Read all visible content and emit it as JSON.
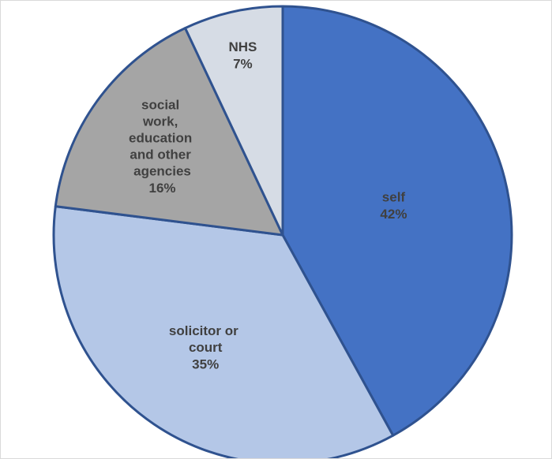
{
  "chart_data": {
    "type": "pie",
    "categories": [
      "self",
      "solicitor or court",
      "social work, education and other agencies",
      "NHS"
    ],
    "values": [
      42,
      35,
      16,
      7
    ],
    "value_labels": [
      "42%",
      "35%",
      "16%",
      "7%"
    ],
    "colors": [
      "#4472c4",
      "#b4c7e7",
      "#a5a5a5",
      "#d6dce5"
    ],
    "start_angle": 0,
    "direction": "clockwise"
  }
}
